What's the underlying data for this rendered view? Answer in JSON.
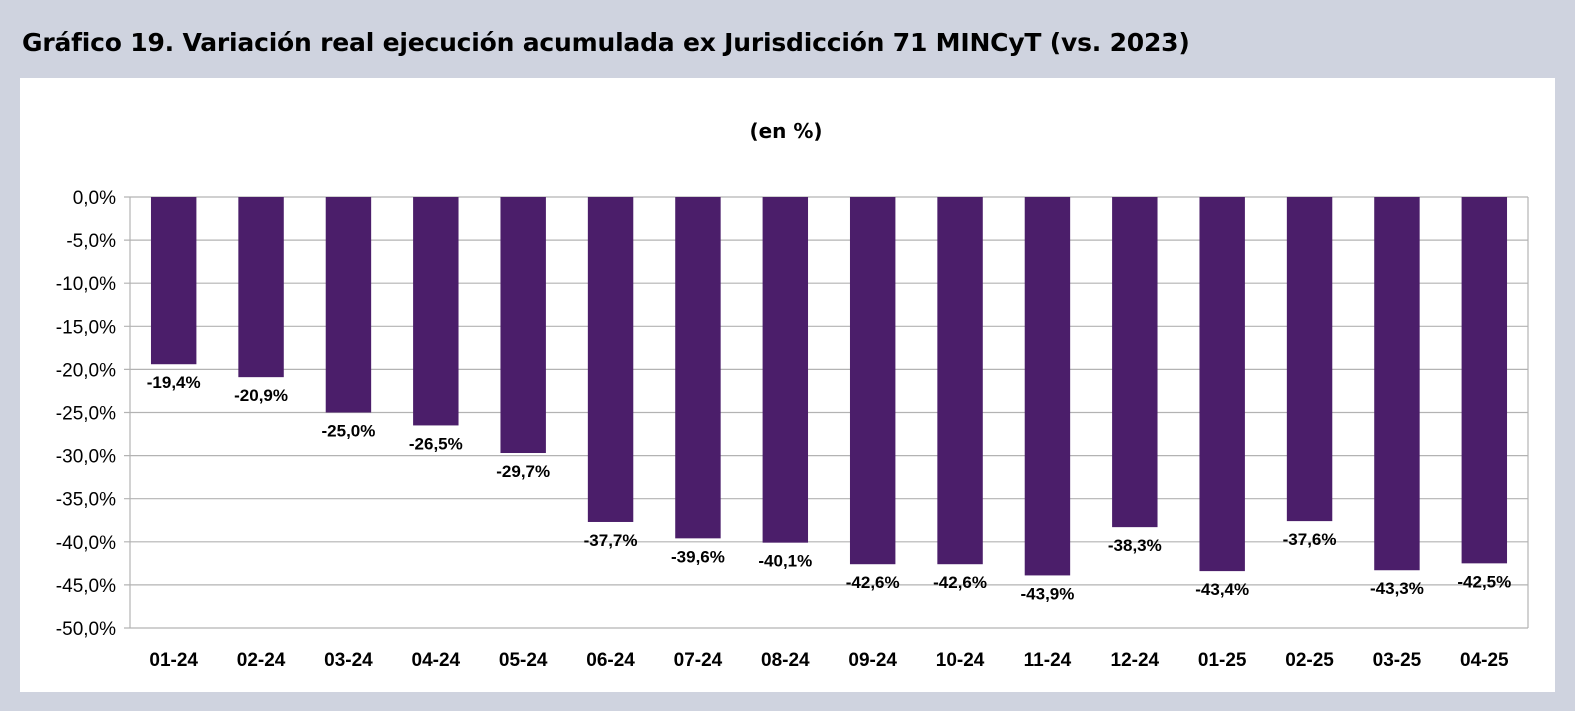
{
  "title": "Gráfico 19. Variación real ejecución acumulada ex Jurisdicción 71 MINCyT (vs. 2023)",
  "colors": {
    "bar": "#4b1e6a",
    "grid": "#b3b3b3",
    "background": "#cfd3df",
    "panel": "#ffffff"
  },
  "chart_data": {
    "type": "bar",
    "title": "(en %)",
    "categories": [
      "01-24",
      "02-24",
      "03-24",
      "04-24",
      "05-24",
      "06-24",
      "07-24",
      "08-24",
      "09-24",
      "10-24",
      "11-24",
      "12-24",
      "01-25",
      "02-25",
      "03-25",
      "04-25"
    ],
    "values": [
      -19.4,
      -20.9,
      -25.0,
      -26.5,
      -29.7,
      -37.7,
      -39.6,
      -40.1,
      -42.6,
      -42.6,
      -43.9,
      -38.3,
      -43.4,
      -37.6,
      -43.3,
      -42.5
    ],
    "data_labels": [
      "-19,4%",
      "-20,9%",
      "-25,0%",
      "-26,5%",
      "-29,7%",
      "-37,7%",
      "-39,6%",
      "-40,1%",
      "-42,6%",
      "-42,6%",
      "-43,9%",
      "-38,3%",
      "-43,4%",
      "-37,6%",
      "-43,3%",
      "-42,5%"
    ],
    "yticks": [
      0,
      -5,
      -10,
      -15,
      -20,
      -25,
      -30,
      -35,
      -40,
      -45,
      -50
    ],
    "ytick_labels": [
      "0,0%",
      "-5,0%",
      "-10,0%",
      "-15,0%",
      "-20,0%",
      "-25,0%",
      "-30,0%",
      "-35,0%",
      "-40,0%",
      "-45,0%",
      "-50,0%"
    ],
    "ylim": [
      -50,
      0
    ],
    "xlabel": "",
    "ylabel": "",
    "grid": true,
    "legend": "none"
  }
}
